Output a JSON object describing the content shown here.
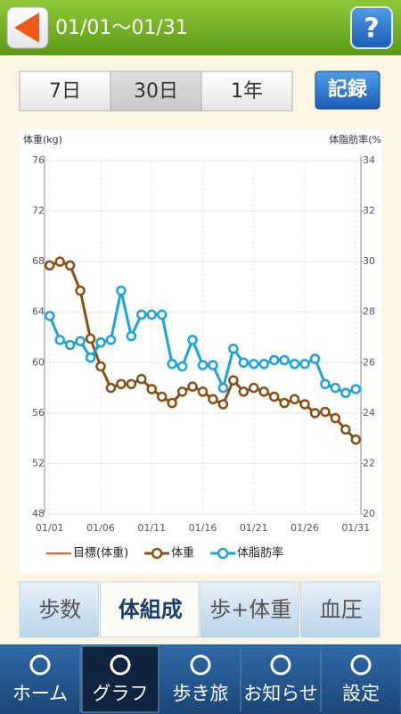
{
  "header": {
    "title": "01/01～01/31",
    "help": "?"
  },
  "range_tabs": {
    "items": [
      "7日",
      "30日",
      "1年"
    ],
    "selected": 1
  },
  "record_button": "記録",
  "chart_data": {
    "type": "line",
    "ylabel": "体重(kg)",
    "y2label": "体脂肪率(%",
    "ylim": [
      48,
      76
    ],
    "yticks": [
      48,
      52,
      56,
      60,
      64,
      68,
      72,
      76
    ],
    "y2lim": [
      20,
      34
    ],
    "y2ticks": [
      20,
      22,
      24,
      26,
      28,
      30,
      32,
      34
    ],
    "grid": true,
    "categories": [
      "01/01",
      null,
      null,
      null,
      null,
      "01/06",
      null,
      null,
      null,
      null,
      "01/11",
      null,
      null,
      null,
      null,
      "01/16",
      null,
      null,
      null,
      null,
      "01/21",
      null,
      null,
      null,
      null,
      "01/26",
      null,
      null,
      null,
      null,
      "01/31"
    ],
    "series": [
      {
        "name": "目標(体重)",
        "color": "#f05a14",
        "marker": false,
        "values": [
          null,
          null,
          null,
          null,
          null,
          null,
          null,
          null,
          null,
          null,
          null,
          null,
          null,
          null,
          null,
          null,
          null,
          null,
          null,
          null,
          null,
          null,
          null,
          null,
          null,
          null,
          null,
          null,
          null,
          null,
          null
        ]
      },
      {
        "name": "体重",
        "color": "#8a4f14",
        "marker": true,
        "values": [
          67.7,
          68.0,
          67.7,
          65.7,
          61.9,
          59.7,
          58.0,
          58.3,
          58.3,
          58.7,
          57.9,
          57.3,
          56.8,
          57.7,
          58.1,
          57.7,
          57.1,
          56.7,
          58.6,
          57.7,
          58.0,
          57.7,
          57.3,
          56.8,
          57.1,
          56.7,
          56.0,
          56.1,
          55.6,
          54.7,
          53.9
        ]
      },
      {
        "name": "体脂肪率",
        "color": "#1aa3d9",
        "marker": true,
        "axis": "y2",
        "values": [
          27.85,
          26.9,
          26.7,
          26.85,
          26.2,
          26.8,
          26.9,
          28.85,
          27.05,
          27.9,
          27.9,
          27.9,
          25.95,
          25.85,
          26.9,
          25.9,
          25.9,
          25.0,
          26.55,
          26.0,
          25.95,
          25.95,
          26.1,
          26.1,
          25.95,
          25.95,
          26.15,
          25.15,
          25.0,
          24.8,
          24.95
        ]
      }
    ]
  },
  "bottom_tabs": {
    "items": [
      "歩数",
      "体組成",
      "歩+体重",
      "血圧"
    ],
    "selected": 1
  },
  "nav": {
    "items": [
      "ホーム",
      "グラフ",
      "歩き旅",
      "お知らせ",
      "設定"
    ],
    "selected": 1
  }
}
